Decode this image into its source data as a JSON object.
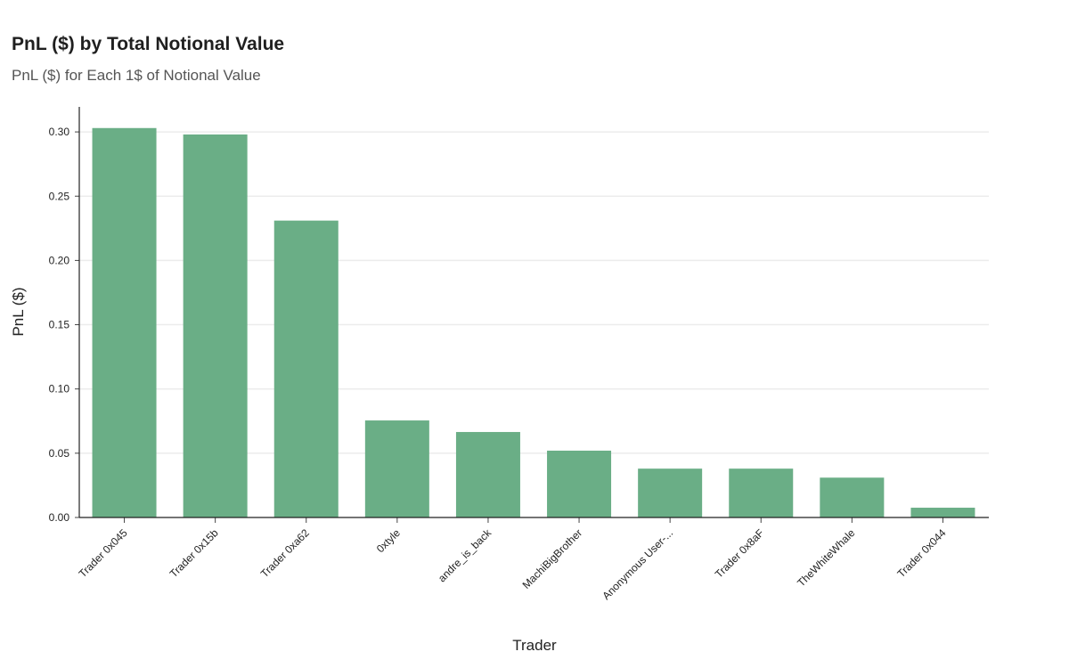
{
  "chart_data": {
    "type": "bar",
    "title": "PnL ($) by Total Notional Value",
    "subtitle": "PnL ($) for Each 1$ of Notional Value",
    "xlabel": "Trader",
    "ylabel": "PnL ($)",
    "categories": [
      "Trader 0x045",
      "Trader 0x15b",
      "Trader 0xa62",
      "0xtyle",
      "andre_is_back",
      "MachiBigBrother",
      "Anonymous User-...",
      "Trader 0x8aF",
      "TheWhiteWhale",
      "Trader 0x044"
    ],
    "values": [
      0.303,
      0.298,
      0.231,
      0.0755,
      0.0665,
      0.052,
      0.038,
      0.038,
      0.031,
      0.0076
    ],
    "ylim": [
      0,
      0.318
    ],
    "yticks": [
      "0.00",
      "0.05",
      "0.10",
      "0.15",
      "0.20",
      "0.25",
      "0.30"
    ],
    "grid": true,
    "bar_color": "#6aae86"
  }
}
